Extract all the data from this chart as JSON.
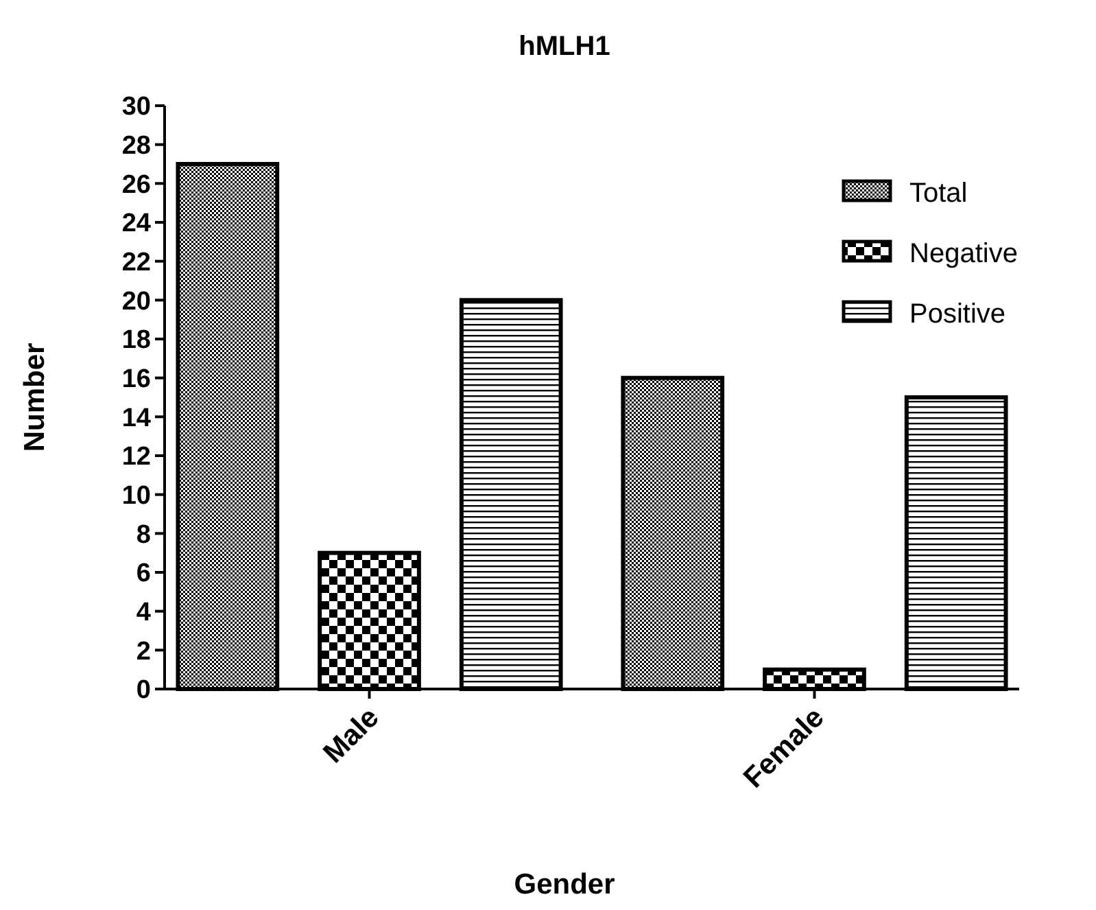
{
  "chart_data": {
    "type": "bar",
    "title": "hMLH1",
    "xlabel": "Gender",
    "ylabel": "Number",
    "categories": [
      "Male",
      "Female"
    ],
    "series": [
      {
        "name": "Total",
        "color": "#000000",
        "values": [
          27,
          16
        ]
      },
      {
        "name": "Negative",
        "color": "#000000",
        "values": [
          7,
          1
        ]
      },
      {
        "name": "Positive",
        "color": "#000000",
        "values": [
          20,
          15
        ]
      }
    ],
    "ylim": [
      0,
      30
    ],
    "yticks": [
      0,
      2,
      4,
      6,
      8,
      10,
      12,
      14,
      16,
      18,
      20,
      22,
      24,
      26,
      28,
      30
    ],
    "grid": false,
    "legend": "top right"
  }
}
